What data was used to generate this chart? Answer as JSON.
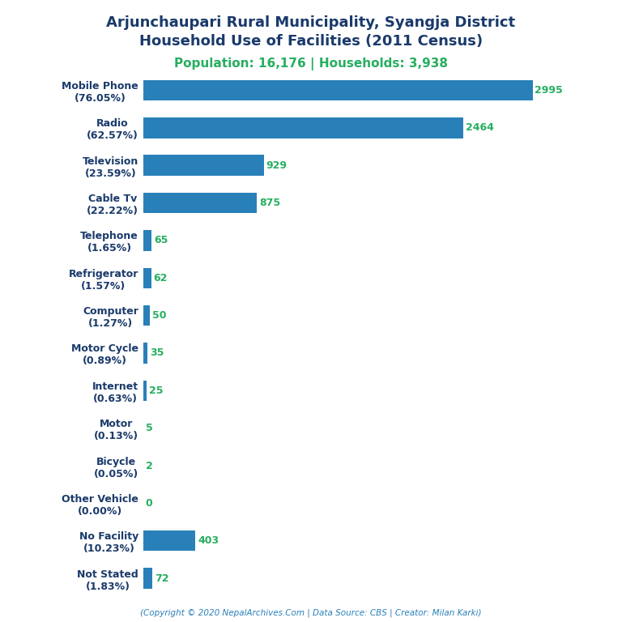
{
  "title_line1": "Arjunchaupari Rural Municipality, Syangja District",
  "title_line2": "Household Use of Facilities (2011 Census)",
  "subtitle": "Population: 16,176 | Households: 3,938",
  "footer": "(Copyright © 2020 NepalArchives.Com | Data Source: CBS | Creator: Milan Karki)",
  "categories": [
    "Mobile Phone\n(76.05%)",
    "Radio\n(62.57%)",
    "Television\n(23.59%)",
    "Cable Tv\n(22.22%)",
    "Telephone\n(1.65%)",
    "Refrigerator\n(1.57%)",
    "Computer\n(1.27%)",
    "Motor Cycle\n(0.89%)",
    "Internet\n(0.63%)",
    "Motor\n(0.13%)",
    "Bicycle\n(0.05%)",
    "Other Vehicle\n(0.00%)",
    "No Facility\n(10.23%)",
    "Not Stated\n(1.83%)"
  ],
  "values": [
    2995,
    2464,
    929,
    875,
    65,
    62,
    50,
    35,
    25,
    5,
    2,
    0,
    403,
    72
  ],
  "bar_color": "#2980b9",
  "value_color": "#27ae60",
  "title_color": "#1a3a6b",
  "subtitle_color": "#27ae60",
  "footer_color": "#2980b9",
  "background_color": "#ffffff",
  "xlim": [
    0,
    3300
  ]
}
